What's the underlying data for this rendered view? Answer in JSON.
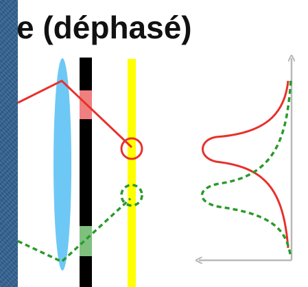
{
  "title": "e (déphasé)",
  "colors": {
    "side_band": "#2f5f8f",
    "lens": "#6ec8f5",
    "mask_bar": "#000000",
    "mask_top_segment": "#f08080",
    "mask_bottom_segment": "#7fc07f",
    "screen": "#ffff00",
    "ray_in_phase": "#e8302a",
    "ray_dephased": "#2a9a2a",
    "axes": "#b8b8b8"
  },
  "icons": {
    "in_phase_marker": "circle",
    "dephased_marker": "dashed-circle",
    "axes": "arrows"
  }
}
